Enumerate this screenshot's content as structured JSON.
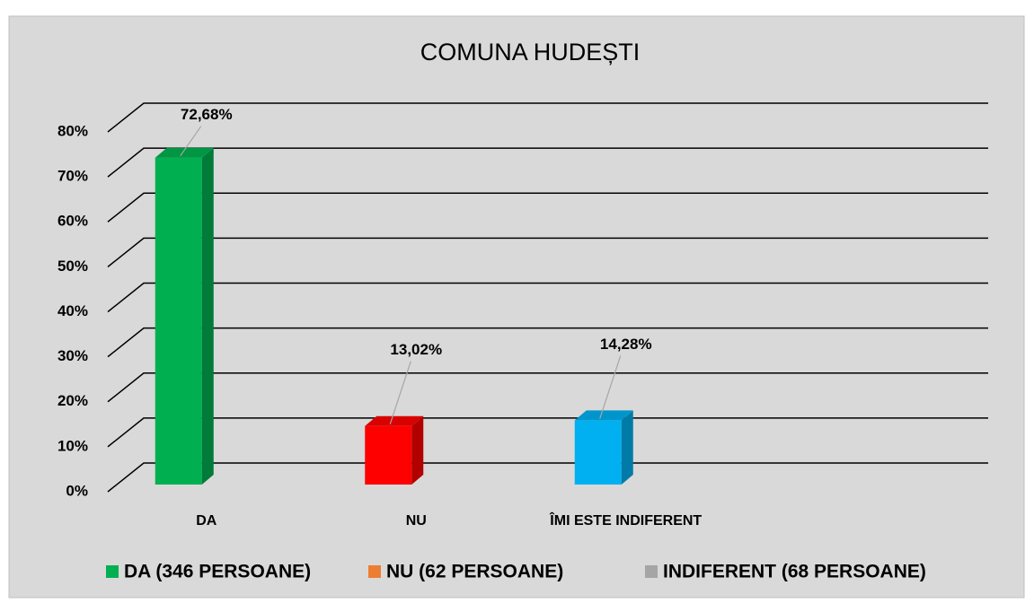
{
  "chart_data": {
    "type": "bar3d",
    "title": "COMUNA HUDEȘTI",
    "categories": [
      "DA",
      "NU",
      "ÎMI ESTE INDIFERENT"
    ],
    "values": [
      72.68,
      13.02,
      14.28
    ],
    "value_labels": [
      "72,68%",
      "13,02%",
      "14,28%"
    ],
    "colors": [
      "#00b050",
      "#ff0000",
      "#00b0f0"
    ],
    "ylim": [
      0,
      80
    ],
    "yticks": [
      {
        "value": 0,
        "label": "0%"
      },
      {
        "value": 10,
        "label": "10%"
      },
      {
        "value": 20,
        "label": "20%"
      },
      {
        "value": 30,
        "label": "30%"
      },
      {
        "value": 40,
        "label": "40%"
      },
      {
        "value": 50,
        "label": "50%"
      },
      {
        "value": 60,
        "label": "60%"
      },
      {
        "value": 70,
        "label": "70%"
      },
      {
        "value": 80,
        "label": "80%"
      }
    ],
    "grid": true,
    "legend": [
      {
        "name": "DA (346 PERSOANE)",
        "color": "#00b050"
      },
      {
        "name": "NU (62 PERSOANE)",
        "color": "#ed7d31"
      },
      {
        "name": "INDIFERENT (68 PERSOANE)",
        "color": "#a5a5a5"
      }
    ]
  }
}
